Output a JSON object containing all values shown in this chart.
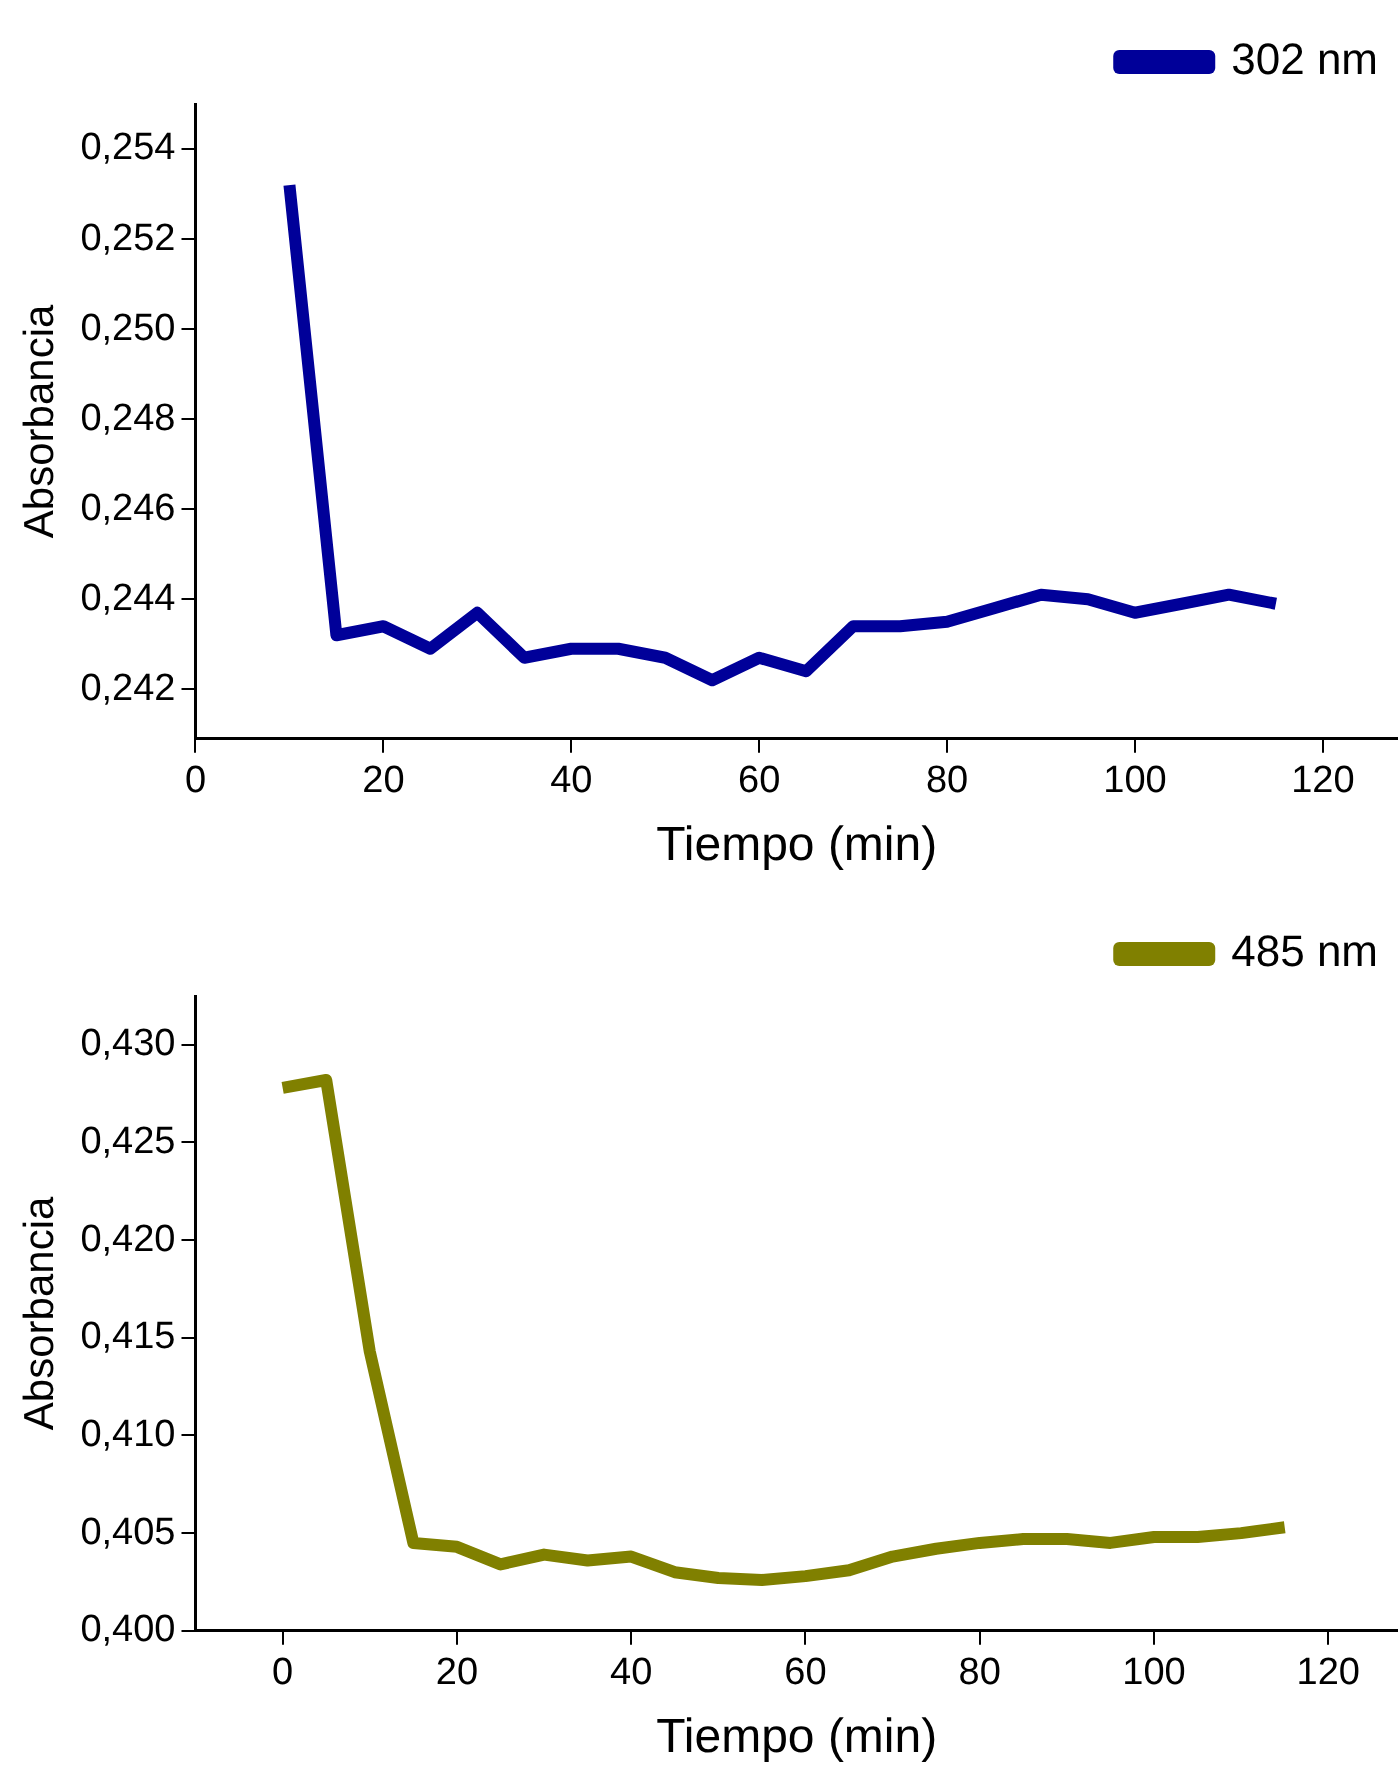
{
  "chart_data": [
    {
      "type": "line",
      "xlabel": "Tiempo (min)",
      "ylabel": "Absorbancia",
      "x": [
        10,
        15,
        20,
        25,
        30,
        35,
        40,
        45,
        50,
        55,
        60,
        65,
        70,
        75,
        80,
        85,
        90,
        95,
        100,
        105,
        110,
        115
      ],
      "series": [
        {
          "name": "302 nm",
          "color": "#000099",
          "values": [
            0.2532,
            0.2432,
            0.2434,
            0.2429,
            0.2437,
            0.2427,
            0.2429,
            0.2429,
            0.2427,
            0.2422,
            0.2427,
            0.2424,
            0.2434,
            0.2434,
            0.2435,
            0.2438,
            0.2441,
            0.244,
            0.2437,
            0.2439,
            0.2441,
            0.2439
          ]
        }
      ],
      "xlim": [
        0,
        128
      ],
      "xticks": [
        0,
        20,
        40,
        60,
        80,
        100,
        120
      ],
      "ylim": [
        0.2409,
        0.255
      ],
      "yticks": [
        {
          "value": 0.242,
          "label": "0,242"
        },
        {
          "value": 0.244,
          "label": "0,244"
        },
        {
          "value": 0.246,
          "label": "0,246"
        },
        {
          "value": 0.248,
          "label": "0,248"
        },
        {
          "value": 0.25,
          "label": "0,250"
        },
        {
          "value": 0.252,
          "label": "0,252"
        },
        {
          "value": 0.254,
          "label": "0,254"
        }
      ],
      "grid": false,
      "legend": "top right",
      "marker": "none",
      "line_style": "solid"
    },
    {
      "type": "line",
      "xlabel": "Tiempo (min)",
      "ylabel": "Absorbancia",
      "x": [
        0,
        5,
        10,
        15,
        20,
        25,
        30,
        35,
        40,
        45,
        50,
        55,
        60,
        65,
        70,
        75,
        80,
        85,
        90,
        95,
        100,
        105,
        110,
        115
      ],
      "series": [
        {
          "name": "485 nm",
          "color": "#808000",
          "values": [
            0.4278,
            0.4282,
            0.4143,
            0.4045,
            0.4043,
            0.4034,
            0.4039,
            0.4036,
            0.4038,
            0.403,
            0.4027,
            0.4026,
            0.4028,
            0.4031,
            0.4038,
            0.4042,
            0.4045,
            0.4047,
            0.4047,
            0.4045,
            0.4048,
            0.4048,
            0.405,
            0.4053
          ]
        }
      ],
      "xlim": [
        -10,
        128
      ],
      "xticks": [
        0,
        20,
        40,
        60,
        80,
        100,
        120
      ],
      "ylim": [
        0.4,
        0.4325
      ],
      "yticks": [
        {
          "value": 0.4,
          "label": "0,400"
        },
        {
          "value": 0.405,
          "label": "0,405"
        },
        {
          "value": 0.41,
          "label": "0,410"
        },
        {
          "value": 0.415,
          "label": "0,415"
        },
        {
          "value": 0.42,
          "label": "0,420"
        },
        {
          "value": 0.425,
          "label": "0,425"
        },
        {
          "value": 0.43,
          "label": "0,430"
        }
      ],
      "grid": false,
      "legend": "top right",
      "marker": "none",
      "line_style": "solid"
    }
  ]
}
